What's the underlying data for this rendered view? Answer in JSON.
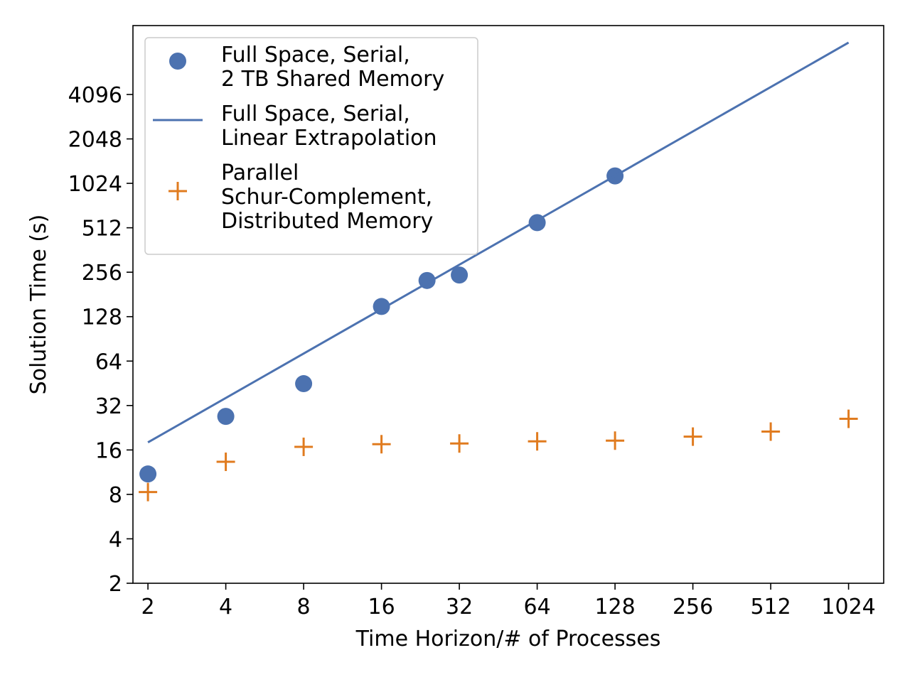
{
  "chart_data": {
    "type": "scatter",
    "title": "",
    "xlabel": "Time Horizon/# of Processes",
    "ylabel": "Solution Time (s)",
    "x_scale": "log2",
    "y_scale": "log2",
    "xlim": [
      1.75,
      1400
    ],
    "ylim": [
      2,
      12000
    ],
    "x_ticks": [
      2,
      4,
      8,
      16,
      32,
      64,
      128,
      256,
      512,
      1024
    ],
    "y_ticks": [
      2,
      4,
      8,
      16,
      32,
      64,
      128,
      256,
      512,
      1024,
      2048,
      4096
    ],
    "grid": false,
    "legend_position": "top-left",
    "colors": {
      "serial": "#4c72b0",
      "extrapolation": "#4c72b0",
      "parallel": "#e07b1f"
    },
    "series": [
      {
        "name": "Full Space, Serial,\n2 TB Shared Memory",
        "legend_lines": [
          "Full Space, Serial,",
          "2 TB Shared Memory"
        ],
        "kind": "marker-circle",
        "color": "#4c72b0",
        "points": [
          {
            "x": 2,
            "y": 11
          },
          {
            "x": 4,
            "y": 27
          },
          {
            "x": 8,
            "y": 45
          },
          {
            "x": 16,
            "y": 150
          },
          {
            "x": 24,
            "y": 225
          },
          {
            "x": 32,
            "y": 245
          },
          {
            "x": 64,
            "y": 555
          },
          {
            "x": 128,
            "y": 1150
          }
        ]
      },
      {
        "name": "Full Space, Serial,\nLinear Extrapolation",
        "legend_lines": [
          "Full Space, Serial,",
          "Linear Extrapolation"
        ],
        "kind": "line",
        "color": "#4c72b0",
        "points": [
          {
            "x": 2,
            "y": 18
          },
          {
            "x": 1024,
            "y": 9200
          }
        ]
      },
      {
        "name": "Parallel\nSchur-Complement,\nDistributed Memory",
        "legend_lines": [
          "Parallel",
          "Schur-Complement,",
          "Distributed Memory"
        ],
        "kind": "marker-plus",
        "color": "#e07b1f",
        "points": [
          {
            "x": 2,
            "y": 8.3
          },
          {
            "x": 4,
            "y": 13.3
          },
          {
            "x": 8,
            "y": 16.8
          },
          {
            "x": 16,
            "y": 17.5
          },
          {
            "x": 32,
            "y": 17.7
          },
          {
            "x": 64,
            "y": 18.3
          },
          {
            "x": 128,
            "y": 18.5
          },
          {
            "x": 256,
            "y": 19.7
          },
          {
            "x": 512,
            "y": 21.3
          },
          {
            "x": 1024,
            "y": 26.0
          }
        ]
      }
    ]
  }
}
